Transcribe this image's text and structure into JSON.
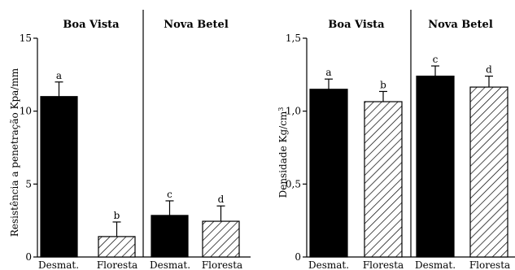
{
  "chart_data": [
    {
      "type": "bar",
      "groups": [
        "Boa Vista",
        "Nova Betel"
      ],
      "categories": [
        "Desmat.",
        "Floresta",
        "Desmat.",
        "Floresta"
      ],
      "values": [
        11.0,
        1.4,
        2.85,
        2.45
      ],
      "errors": [
        1.0,
        1.0,
        1.0,
        1.05
      ],
      "letters": [
        "a",
        "b",
        "c",
        "d"
      ],
      "fills": [
        "solid",
        "hatched",
        "solid",
        "hatched"
      ],
      "ylabel": "Resistência a penetração Kpa/mm",
      "ylim": [
        0,
        15
      ],
      "yticks": [
        0,
        5,
        10,
        15
      ],
      "yticklabels": [
        "0",
        "5",
        "10",
        "15"
      ]
    },
    {
      "type": "bar",
      "groups": [
        "Boa Vista",
        "Nova Betel"
      ],
      "categories": [
        "Desmat.",
        "Floresta",
        "Desmat.",
        "Floresta"
      ],
      "values": [
        1.15,
        1.065,
        1.24,
        1.165
      ],
      "errors": [
        0.07,
        0.07,
        0.07,
        0.075
      ],
      "letters": [
        "a",
        "b",
        "c",
        "d"
      ],
      "fills": [
        "solid",
        "hatched",
        "solid",
        "hatched"
      ],
      "ylabel_base": "Densidade Kg/cm",
      "ylabel_sup": "3",
      "ylim": [
        0,
        1.5
      ],
      "yticks": [
        0,
        0.5,
        1.0,
        1.5
      ],
      "yticklabels": [
        "0",
        "0,5",
        "1,0",
        "1,5"
      ]
    }
  ],
  "colors": {
    "bar_solid": "#000000",
    "hatch": "#000000",
    "background": "#ffffff"
  }
}
